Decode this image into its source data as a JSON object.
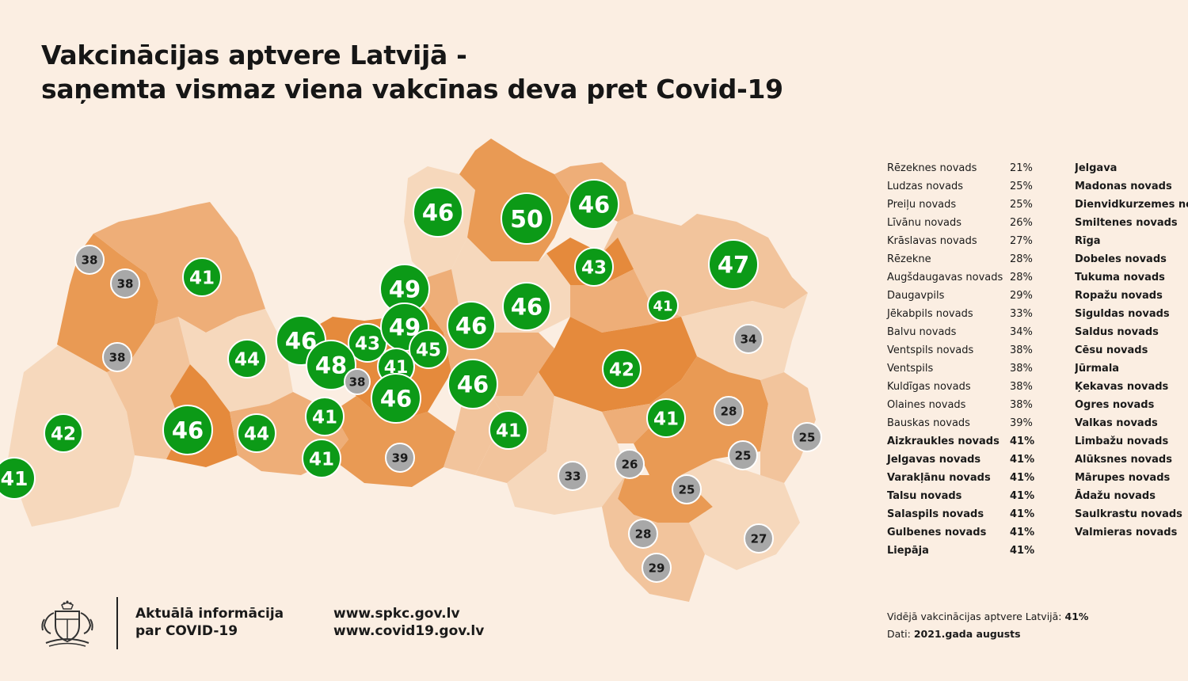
{
  "title": {
    "line1": "Vakcinācijas aptvere Latvijā -",
    "line2": "saņemta vismaz viena vakcīnas deva pret Covid-19"
  },
  "colors": {
    "background": "#fbeee2",
    "high": "#0c9a17",
    "low": "#a8a8a8",
    "region_shades": [
      "#f6d8bc",
      "#f2c49c",
      "#eeae78",
      "#e99a54",
      "#e58a3c"
    ]
  },
  "map_markers": [
    {
      "value": "46",
      "level": "high"
    },
    {
      "value": "50",
      "level": "high"
    },
    {
      "value": "46",
      "level": "high"
    },
    {
      "value": "38",
      "level": "low"
    },
    {
      "value": "38",
      "level": "low"
    },
    {
      "value": "41",
      "level": "high"
    },
    {
      "value": "43",
      "level": "high"
    },
    {
      "value": "47",
      "level": "high"
    },
    {
      "value": "49",
      "level": "high"
    },
    {
      "value": "46",
      "level": "high"
    },
    {
      "value": "41",
      "level": "high"
    },
    {
      "value": "38",
      "level": "low"
    },
    {
      "value": "44",
      "level": "high"
    },
    {
      "value": "46",
      "level": "high"
    },
    {
      "value": "43",
      "level": "high"
    },
    {
      "value": "49",
      "level": "high"
    },
    {
      "value": "45",
      "level": "high"
    },
    {
      "value": "46",
      "level": "high"
    },
    {
      "value": "34",
      "level": "low"
    },
    {
      "value": "48",
      "level": "high"
    },
    {
      "value": "41",
      "level": "high"
    },
    {
      "value": "38",
      "level": "low"
    },
    {
      "value": "42",
      "level": "high"
    },
    {
      "value": "46",
      "level": "high"
    },
    {
      "value": "46",
      "level": "high"
    },
    {
      "value": "41",
      "level": "high"
    },
    {
      "value": "28",
      "level": "low"
    },
    {
      "value": "42",
      "level": "high"
    },
    {
      "value": "46",
      "level": "high"
    },
    {
      "value": "44",
      "level": "high"
    },
    {
      "value": "41",
      "level": "high"
    },
    {
      "value": "25",
      "level": "low"
    },
    {
      "value": "41",
      "level": "high"
    },
    {
      "value": "25",
      "level": "low"
    },
    {
      "value": "41",
      "level": "high"
    },
    {
      "value": "39",
      "level": "low"
    },
    {
      "value": "33",
      "level": "low"
    },
    {
      "value": "26",
      "level": "low"
    },
    {
      "value": "41",
      "level": "high"
    },
    {
      "value": "25",
      "level": "low"
    },
    {
      "value": "28",
      "level": "low"
    },
    {
      "value": "27",
      "level": "low"
    },
    {
      "value": "29",
      "level": "low"
    }
  ],
  "stats_left": [
    {
      "name": "Rēzeknes novads",
      "pct": "21%",
      "bold": false
    },
    {
      "name": "Ludzas novads",
      "pct": "25%",
      "bold": false
    },
    {
      "name": "Preiļu novads",
      "pct": "25%",
      "bold": false
    },
    {
      "name": "Līvānu novads",
      "pct": "26%",
      "bold": false
    },
    {
      "name": "Krāslavas novads",
      "pct": "27%",
      "bold": false
    },
    {
      "name": "Rēzekne",
      "pct": "28%",
      "bold": false
    },
    {
      "name": "Augšdaugavas novads",
      "pct": "28%",
      "bold": false
    },
    {
      "name": "Daugavpils",
      "pct": "29%",
      "bold": false
    },
    {
      "name": "Jēkabpils novads",
      "pct": "33%",
      "bold": false
    },
    {
      "name": "Balvu novads",
      "pct": "34%",
      "bold": false
    },
    {
      "name": "Ventspils novads",
      "pct": "38%",
      "bold": false
    },
    {
      "name": "Ventspils",
      "pct": "38%",
      "bold": false
    },
    {
      "name": "Kuldīgas novads",
      "pct": "38%",
      "bold": false
    },
    {
      "name": "Olaines novads",
      "pct": "38%",
      "bold": false
    },
    {
      "name": "Bauskas novads",
      "pct": "39%",
      "bold": false
    },
    {
      "name": "Aizkraukles novads",
      "pct": "41%",
      "bold": true
    },
    {
      "name": "Jelgavas novads",
      "pct": "41%",
      "bold": true
    },
    {
      "name": "Varakļānu novads",
      "pct": "41%",
      "bold": true
    },
    {
      "name": "Talsu novads",
      "pct": "41%",
      "bold": true
    },
    {
      "name": "Salaspils novads",
      "pct": "41%",
      "bold": true
    },
    {
      "name": "Gulbenes novads",
      "pct": "41%",
      "bold": true
    },
    {
      "name": "Liepāja",
      "pct": "41%",
      "bold": true
    }
  ],
  "stats_right": [
    "Jelgava",
    "Madonas novads",
    "Dienvidkurzemes novads",
    "Smiltenes novads",
    "Rīga",
    "Dobeles novads",
    "Tukuma novads",
    "Ropažu novads",
    "Siguldas novads",
    "Saldus novads",
    "Cēsu novads",
    "Jūrmala",
    "Ķekavas novads",
    "Ogres novads",
    "Valkas novads",
    "Limbažu novads",
    "Alūksnes novads",
    "Mārupes novads",
    "Ādažu novads",
    "Saulkrastu novads",
    "Valmieras novads"
  ],
  "footer": {
    "info_line1": "Aktuālā informācija",
    "info_line2": "par COVID-19",
    "link1": "www.spkc.gov.lv",
    "link2": "www.covid19.gov.lv",
    "avg_label": "Vidējā vakcinācijas aptvere Latvijā:",
    "avg_value": "41%",
    "date_label": "Dati:",
    "date_value": "2021.gada augusts"
  }
}
